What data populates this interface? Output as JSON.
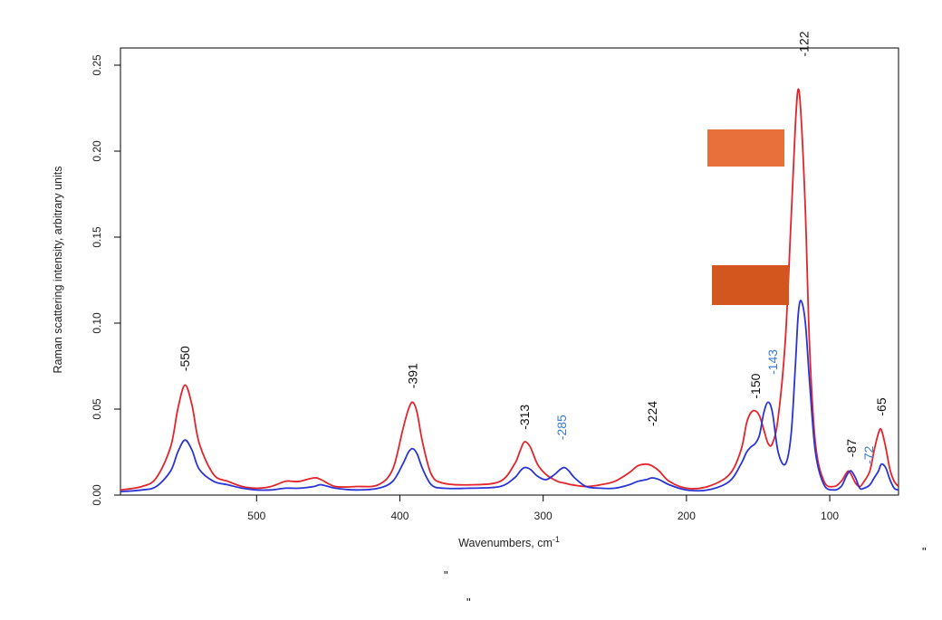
{
  "chart_data": {
    "type": "line",
    "xlabel": "Wavenumbers, cm",
    "xlabel_superscript": "-1",
    "ylabel": "Raman scattering intensity, arbitrary units",
    "xlim": [
      595,
      52
    ],
    "ylim": [
      0,
      0.26
    ],
    "x_reversed": true,
    "x_ticks": [
      500,
      400,
      300,
      200,
      100
    ],
    "x_tick_labels": [
      "500",
      "400",
      "300",
      "200",
      "100"
    ],
    "y_ticks": [
      0,
      0.05,
      0.1,
      0.15,
      0.2,
      0.25
    ],
    "y_tick_labels": [
      "0.00",
      "0.05",
      "0.10",
      "0.15",
      "0.20",
      "0.25"
    ],
    "grid": false,
    "colors": {
      "red": "#e3242b",
      "blue": "#2a34d6",
      "label_black": "#111111",
      "label_blue": "#3a7bd5",
      "swatch_1": "#e8703a",
      "swatch_2": "#d4561f"
    },
    "series": [
      {
        "color": "#e3242b",
        "x": [
          595,
          580,
          570,
          560,
          555,
          550,
          545,
          540,
          530,
          520,
          510,
          500,
          490,
          480,
          475,
          470,
          460,
          455,
          445,
          430,
          415,
          405,
          398,
          394,
          391,
          388,
          384,
          378,
          370,
          350,
          330,
          320,
          316,
          313,
          309,
          304,
          298,
          290,
          285,
          280,
          270,
          260,
          250,
          240,
          234,
          228,
          224,
          219,
          212,
          200,
          185,
          170,
          162,
          158,
          155,
          152,
          149,
          146,
          143,
          140,
          136,
          131,
          127,
          124,
          122,
          120,
          117,
          114,
          110,
          104,
          97,
          92,
          89,
          87,
          85,
          82,
          79,
          76,
          72,
          69,
          66,
          64,
          61,
          58,
          55,
          52
        ],
        "y": [
          0.003,
          0.005,
          0.01,
          0.028,
          0.05,
          0.064,
          0.052,
          0.03,
          0.012,
          0.008,
          0.005,
          0.004,
          0.005,
          0.008,
          0.008,
          0.008,
          0.01,
          0.009,
          0.005,
          0.005,
          0.006,
          0.015,
          0.038,
          0.05,
          0.054,
          0.048,
          0.03,
          0.012,
          0.007,
          0.006,
          0.008,
          0.018,
          0.026,
          0.031,
          0.028,
          0.018,
          0.012,
          0.008,
          0.007,
          0.006,
          0.005,
          0.006,
          0.008,
          0.013,
          0.017,
          0.018,
          0.017,
          0.014,
          0.008,
          0.004,
          0.005,
          0.012,
          0.026,
          0.042,
          0.048,
          0.049,
          0.046,
          0.038,
          0.03,
          0.03,
          0.045,
          0.09,
          0.16,
          0.215,
          0.236,
          0.22,
          0.165,
          0.085,
          0.03,
          0.008,
          0.005,
          0.008,
          0.012,
          0.014,
          0.012,
          0.007,
          0.005,
          0.008,
          0.014,
          0.026,
          0.036,
          0.038,
          0.028,
          0.015,
          0.008,
          0.005
        ]
      },
      {
        "color": "#2a34d6",
        "x": [
          595,
          580,
          570,
          560,
          555,
          550,
          545,
          540,
          530,
          520,
          510,
          500,
          490,
          480,
          470,
          460,
          455,
          445,
          430,
          415,
          405,
          398,
          394,
          391,
          388,
          384,
          378,
          370,
          350,
          330,
          320,
          316,
          313,
          309,
          304,
          298,
          292,
          288,
          285,
          282,
          278,
          270,
          260,
          250,
          240,
          234,
          228,
          224,
          219,
          212,
          200,
          185,
          170,
          162,
          158,
          155,
          152,
          149,
          146,
          143,
          140,
          136,
          131,
          127,
          124,
          122,
          120,
          117,
          114,
          110,
          104,
          97,
          92,
          89,
          87,
          85,
          82,
          79,
          76,
          72,
          69,
          66,
          64,
          61,
          58,
          55,
          52
        ],
        "y": [
          0.002,
          0.003,
          0.005,
          0.014,
          0.025,
          0.032,
          0.026,
          0.015,
          0.008,
          0.006,
          0.004,
          0.003,
          0.003,
          0.004,
          0.004,
          0.005,
          0.006,
          0.004,
          0.003,
          0.004,
          0.008,
          0.018,
          0.025,
          0.027,
          0.024,
          0.015,
          0.006,
          0.004,
          0.004,
          0.005,
          0.01,
          0.014,
          0.016,
          0.015,
          0.011,
          0.009,
          0.012,
          0.015,
          0.016,
          0.014,
          0.01,
          0.005,
          0.004,
          0.004,
          0.006,
          0.008,
          0.009,
          0.01,
          0.009,
          0.006,
          0.003,
          0.003,
          0.008,
          0.018,
          0.025,
          0.028,
          0.03,
          0.035,
          0.048,
          0.054,
          0.048,
          0.025,
          0.018,
          0.035,
          0.075,
          0.105,
          0.113,
          0.1,
          0.065,
          0.025,
          0.006,
          0.003,
          0.005,
          0.01,
          0.013,
          0.014,
          0.01,
          0.004,
          0.004,
          0.006,
          0.01,
          0.014,
          0.018,
          0.016,
          0.009,
          0.004,
          0.003
        ]
      }
    ],
    "annotations": [
      {
        "text": "-550",
        "x": 550,
        "y": 0.072,
        "color": "#111111"
      },
      {
        "text": "-391",
        "x": 391,
        "y": 0.062,
        "color": "#111111"
      },
      {
        "text": "-313",
        "x": 313,
        "y": 0.038,
        "color": "#111111"
      },
      {
        "text": "-285",
        "x": 287,
        "y": 0.032,
        "color": "#3a7bd5"
      },
      {
        "text": "-224",
        "x": 224,
        "y": 0.04,
        "color": "#111111"
      },
      {
        "text": "-150",
        "x": 152,
        "y": 0.056,
        "color": "#111111"
      },
      {
        "text": "-143",
        "x": 140,
        "y": 0.07,
        "color": "#3a7bd5"
      },
      {
        "text": "-122",
        "x": 118,
        "y": 0.255,
        "color": "#111111"
      },
      {
        "text": "-87",
        "x": 85,
        "y": 0.022,
        "color": "#111111"
      },
      {
        "text": "-72",
        "x": 73,
        "y": 0.018,
        "color": "#3a7bd5"
      },
      {
        "text": "-65",
        "x": 64,
        "y": 0.046,
        "color": "#111111"
      }
    ]
  },
  "stray_marks": [
    "\"",
    "\"",
    "\""
  ]
}
